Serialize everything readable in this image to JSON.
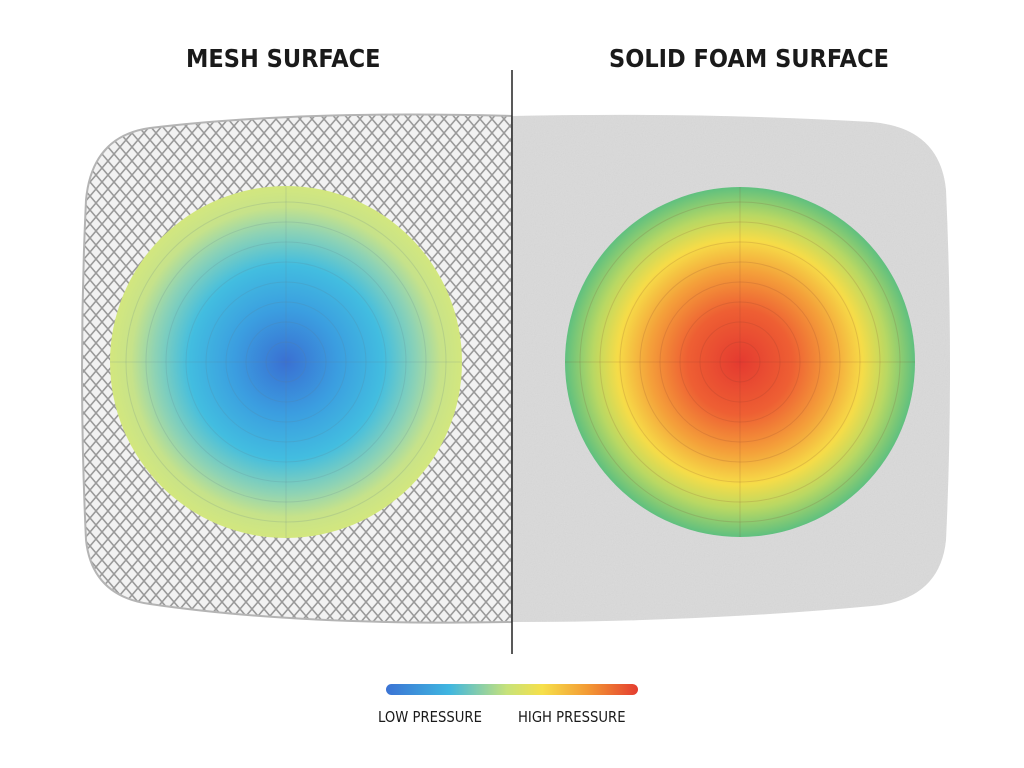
{
  "panels": {
    "left": {
      "title": "MESH SURFACE",
      "material": "mesh",
      "pressure_zone": "low-pressure-distribution"
    },
    "right": {
      "title": "SOLID FOAM SURFACE",
      "material": "solid-foam",
      "pressure_zone": "high-pressure-concentration"
    }
  },
  "legend": {
    "low_label": "LOW PRESSURE",
    "high_label": "HIGH PRESSURE",
    "gradient_colors": [
      "#3b73d4",
      "#3fb6e0",
      "#c7e27a",
      "#f6e04a",
      "#f39a34",
      "#e43d30"
    ]
  },
  "colors": {
    "mesh_line": "#9a9a9a",
    "foam_fill": "#dcdcdc",
    "divider": "#222222",
    "title": "#1a1a1a"
  }
}
